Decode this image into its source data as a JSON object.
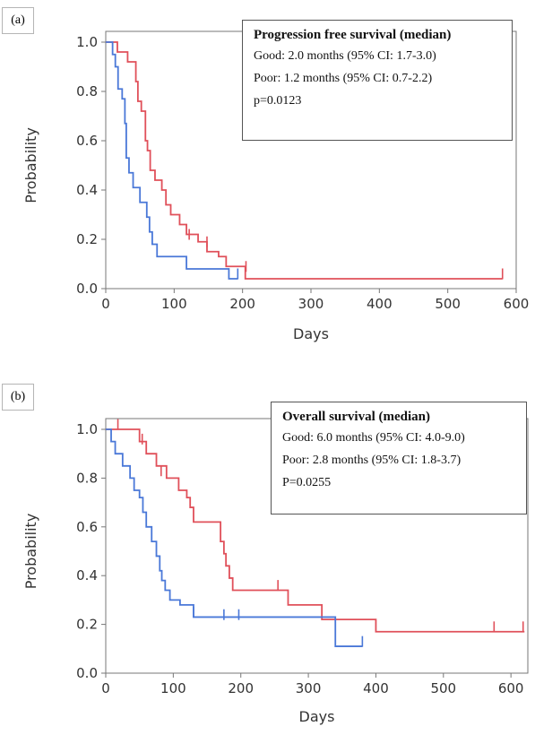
{
  "chart_data": [
    {
      "type": "line",
      "panel_label": "(a)",
      "xlabel": "Days",
      "ylabel": "Probability",
      "xlim": [
        0,
        600
      ],
      "ylim": [
        0,
        1.0
      ],
      "x_ticks": [
        0,
        100,
        200,
        300,
        400,
        500,
        600
      ],
      "y_ticks": [
        "0.0",
        "0.2",
        "0.4",
        "0.6",
        "0.8",
        "1.0"
      ],
      "legend": {
        "title": "Progression free survival (median)",
        "lines": [
          "Good: 2.0 months (95% CI: 1.7-3.0)",
          "Poor: 1.2 months (95% CI: 0.7-2.2)",
          "p=0.0123"
        ],
        "placement": "top-right"
      },
      "series": [
        {
          "color": "#e0505a",
          "steps": [
            [
              0,
              1.0
            ],
            [
              17,
              0.96
            ],
            [
              32,
              0.92
            ],
            [
              44,
              0.84
            ],
            [
              47,
              0.76
            ],
            [
              52,
              0.72
            ],
            [
              58,
              0.6
            ],
            [
              61,
              0.56
            ],
            [
              65,
              0.48
            ],
            [
              72,
              0.44
            ],
            [
              82,
              0.4
            ],
            [
              88,
              0.34
            ],
            [
              95,
              0.3
            ],
            [
              108,
              0.26
            ],
            [
              118,
              0.22
            ],
            [
              135,
              0.19
            ],
            [
              148,
              0.15
            ],
            [
              165,
              0.13
            ],
            [
              176,
              0.09
            ],
            [
              204,
              0.04
            ],
            [
              580,
              0.04
            ]
          ],
          "censored": [
            [
              122,
              0.22
            ],
            [
              148,
              0.19
            ],
            [
              205,
              0.09
            ],
            [
              580,
              0.06
            ]
          ]
        },
        {
          "color": "#4a78d8",
          "steps": [
            [
              0,
              1.0
            ],
            [
              10,
              0.95
            ],
            [
              14,
              0.9
            ],
            [
              18,
              0.81
            ],
            [
              24,
              0.77
            ],
            [
              28,
              0.67
            ],
            [
              30,
              0.53
            ],
            [
              34,
              0.47
            ],
            [
              40,
              0.41
            ],
            [
              50,
              0.35
            ],
            [
              60,
              0.29
            ],
            [
              64,
              0.23
            ],
            [
              68,
              0.18
            ],
            [
              75,
              0.13
            ],
            [
              118,
              0.08
            ],
            [
              180,
              0.04
            ],
            [
              193,
              0.04
            ]
          ],
          "censored": [
            [
              193,
              0.06
            ]
          ]
        }
      ]
    },
    {
      "type": "line",
      "panel_label": "(b)",
      "xlabel": "Days",
      "ylabel": "Probability",
      "xlim": [
        0,
        625
      ],
      "ylim": [
        0,
        1.0
      ],
      "x_ticks": [
        0,
        100,
        200,
        300,
        400,
        500,
        600
      ],
      "y_ticks": [
        "0.0",
        "0.2",
        "0.4",
        "0.6",
        "0.8",
        "1.0"
      ],
      "legend": {
        "title": "Overall survival (median)",
        "lines": [
          "Good: 6.0 months (95% CI: 4.0-9.0)",
          "Poor: 2.8 months (95% CI: 1.8-3.7)",
          "P=0.0255"
        ],
        "placement": "top-right"
      },
      "series": [
        {
          "color": "#e0505a",
          "steps": [
            [
              0,
              1.0
            ],
            [
              50,
              0.95
            ],
            [
              60,
              0.9
            ],
            [
              75,
              0.85
            ],
            [
              90,
              0.8
            ],
            [
              108,
              0.75
            ],
            [
              120,
              0.72
            ],
            [
              125,
              0.68
            ],
            [
              130,
              0.62
            ],
            [
              170,
              0.54
            ],
            [
              175,
              0.49
            ],
            [
              178,
              0.44
            ],
            [
              183,
              0.39
            ],
            [
              188,
              0.34
            ],
            [
              270,
              0.28
            ],
            [
              320,
              0.22
            ],
            [
              400,
              0.17
            ],
            [
              620,
              0.17
            ]
          ],
          "censored": [
            [
              18,
              1.02
            ],
            [
              54,
              0.96
            ],
            [
              82,
              0.83
            ],
            [
              255,
              0.36
            ],
            [
              575,
              0.19
            ],
            [
              618,
              0.19
            ]
          ]
        },
        {
          "color": "#4a78d8",
          "steps": [
            [
              0,
              1.0
            ],
            [
              8,
              0.95
            ],
            [
              14,
              0.9
            ],
            [
              25,
              0.85
            ],
            [
              36,
              0.8
            ],
            [
              42,
              0.75
            ],
            [
              50,
              0.72
            ],
            [
              55,
              0.66
            ],
            [
              60,
              0.6
            ],
            [
              68,
              0.54
            ],
            [
              75,
              0.48
            ],
            [
              80,
              0.42
            ],
            [
              83,
              0.38
            ],
            [
              88,
              0.34
            ],
            [
              95,
              0.3
            ],
            [
              110,
              0.28
            ],
            [
              130,
              0.23
            ],
            [
              340,
              0.11
            ],
            [
              380,
              0.11
            ]
          ],
          "censored": [
            [
              130,
              0.25
            ],
            [
              175,
              0.24
            ],
            [
              197,
              0.24
            ],
            [
              380,
              0.13
            ]
          ]
        }
      ]
    }
  ]
}
